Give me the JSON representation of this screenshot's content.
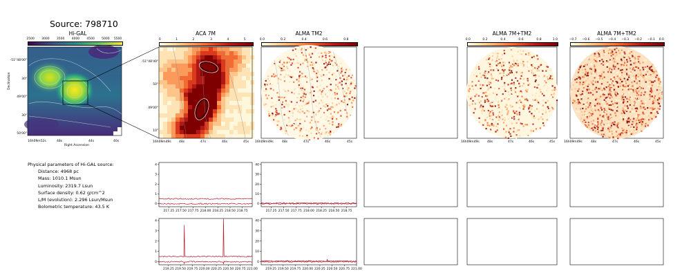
{
  "source_title": "Source: 798710",
  "panel_titles": {
    "higal": "Hi-GAL",
    "aca": "ACA 7M",
    "alma_tm2": "ALMA TM2",
    "alma_7m_tm2": "ALMA 7M+TM2",
    "alma_7m_tm2_b": "ALMA 7M+TM2"
  },
  "colorbars": {
    "higal": [
      "2500",
      "3000",
      "3500",
      "4000",
      "4500",
      "5000",
      "5500"
    ],
    "aca": [
      "0",
      "1",
      "2",
      "3",
      "4",
      "5"
    ],
    "alma_tm2": [
      "0.0",
      "0.2",
      "0.4",
      "0.6",
      "0.8"
    ],
    "alma_7m_tm2": [
      "0.0",
      "0.2",
      "0.4",
      "0.6",
      "0.8",
      "1.0"
    ],
    "alma_7m_tm2_b": [
      "−0.7",
      "−0.6",
      "−0.5",
      "−0.4",
      "−0.3",
      "−0.2",
      "−0.1",
      "0.0"
    ]
  },
  "higal_axes": {
    "y_ticks": [
      "-51°48'00\"",
      "30\"",
      "49'00\"",
      "30\"",
      "50'00\""
    ],
    "x_ticks": [
      "16h09m52s",
      "48s",
      "44s",
      "40s"
    ],
    "xlabel": "Right Ascension",
    "ylabel": "Declination"
  },
  "aca_axes": {
    "y_ticks": [
      "-51°48'40\"",
      "50\"",
      "49'00\"",
      "10\""
    ],
    "x_ticks": [
      "16h09m49s",
      "48s",
      "47s",
      "46s",
      "45s"
    ]
  },
  "alma_axes": {
    "x_ticks": [
      "16h09m49s",
      "48s",
      "47s",
      "46s",
      "45s"
    ]
  },
  "params": {
    "header": "Physical parameters of Hi-GAL source:",
    "lines": [
      "Distance: 4968 pc",
      "Mass: 1010.1 Msun",
      "Luminosity: 2319.7 Lsun",
      "Surface density: 0.62 g/cm^2",
      "L/M (evolution): 2.296 Lsun/Msun",
      "Bolometric temperature: 43.5 K"
    ]
  },
  "chart_data": [
    {
      "type": "line",
      "title": "",
      "panel": "ACA 7M spectrum (row 1)",
      "x_ticks": [
        "217.25",
        "217.50",
        "217.75",
        "218.00",
        "218.25",
        "218.50",
        "218.75"
      ],
      "y_ticks": [
        "0",
        "1",
        "2",
        "3",
        "4"
      ],
      "xlim": [
        217.05,
        218.95
      ],
      "ylim": [
        -0.3,
        4.2
      ],
      "series": [
        {
          "values": [
            [
              217.05,
              0.5
            ],
            [
              218.95,
              0.5
            ]
          ]
        },
        {
          "values": [
            [
              217.05,
              0.0
            ],
            [
              218.95,
              0.0
            ]
          ]
        }
      ]
    },
    {
      "type": "line",
      "title": "",
      "panel": "ALMA TM2 spectrum (row 1)",
      "x_ticks": [
        "217.25",
        "217.50",
        "217.75",
        "218.00",
        "218.25",
        "218.50",
        "218.75"
      ],
      "y_ticks": [
        "0",
        "10",
        "20",
        "30",
        "40"
      ],
      "xlim": [
        217.05,
        218.95
      ],
      "ylim": [
        -3,
        42
      ],
      "series": [
        {
          "values": [
            [
              217.05,
              0.6
            ],
            [
              218.95,
              0.6
            ]
          ]
        },
        {
          "values": [
            [
              217.05,
              0.0
            ],
            [
              218.95,
              0.0
            ]
          ]
        }
      ]
    },
    {
      "type": "line",
      "title": "",
      "panel": "ACA 7M spectrum (row 2)",
      "x_ticks": [
        "219.25",
        "219.50",
        "219.75",
        "220.00",
        "220.25",
        "220.50",
        "220.75",
        "221.00"
      ],
      "y_ticks": [
        "0",
        "1",
        "2",
        "3",
        "4"
      ],
      "xlim": [
        219.05,
        221.0
      ],
      "ylim": [
        -0.3,
        4.2
      ],
      "series": [
        {
          "values": [
            [
              219.05,
              0.5
            ],
            [
              219.57,
              0.5
            ],
            [
              219.58,
              3.6
            ],
            [
              219.59,
              0.5
            ],
            [
              220.39,
              0.5
            ],
            [
              220.4,
              4.2
            ],
            [
              220.41,
              0.5
            ],
            [
              221.0,
              0.5
            ]
          ]
        },
        {
          "values": [
            [
              219.05,
              0.0
            ],
            [
              219.57,
              0.0
            ],
            [
              219.58,
              -0.2
            ],
            [
              219.59,
              0.0
            ],
            [
              220.39,
              0.0
            ],
            [
              220.4,
              -0.25
            ],
            [
              220.41,
              0.0
            ],
            [
              221.0,
              0.0
            ]
          ]
        }
      ]
    },
    {
      "type": "line",
      "title": "",
      "panel": "ALMA TM2 spectrum (row 2)",
      "x_ticks": [
        "219.25",
        "219.50",
        "219.75",
        "220.00",
        "220.25",
        "220.50",
        "220.75",
        "221.00"
      ],
      "y_ticks": [
        "0",
        "10",
        "20",
        "30",
        "40"
      ],
      "xlim": [
        219.05,
        221.0
      ],
      "ylim": [
        -3,
        42
      ],
      "series": [
        {
          "values": [
            [
              219.05,
              0.6
            ],
            [
              219.57,
              0.6
            ],
            [
              219.58,
              1.8
            ],
            [
              219.59,
              0.6
            ],
            [
              220.39,
              0.6
            ],
            [
              220.4,
              2.8
            ],
            [
              220.41,
              0.6
            ],
            [
              221.0,
              0.6
            ]
          ]
        },
        {
          "values": [
            [
              219.05,
              0.0
            ],
            [
              221.0,
              0.0
            ]
          ]
        }
      ]
    }
  ]
}
